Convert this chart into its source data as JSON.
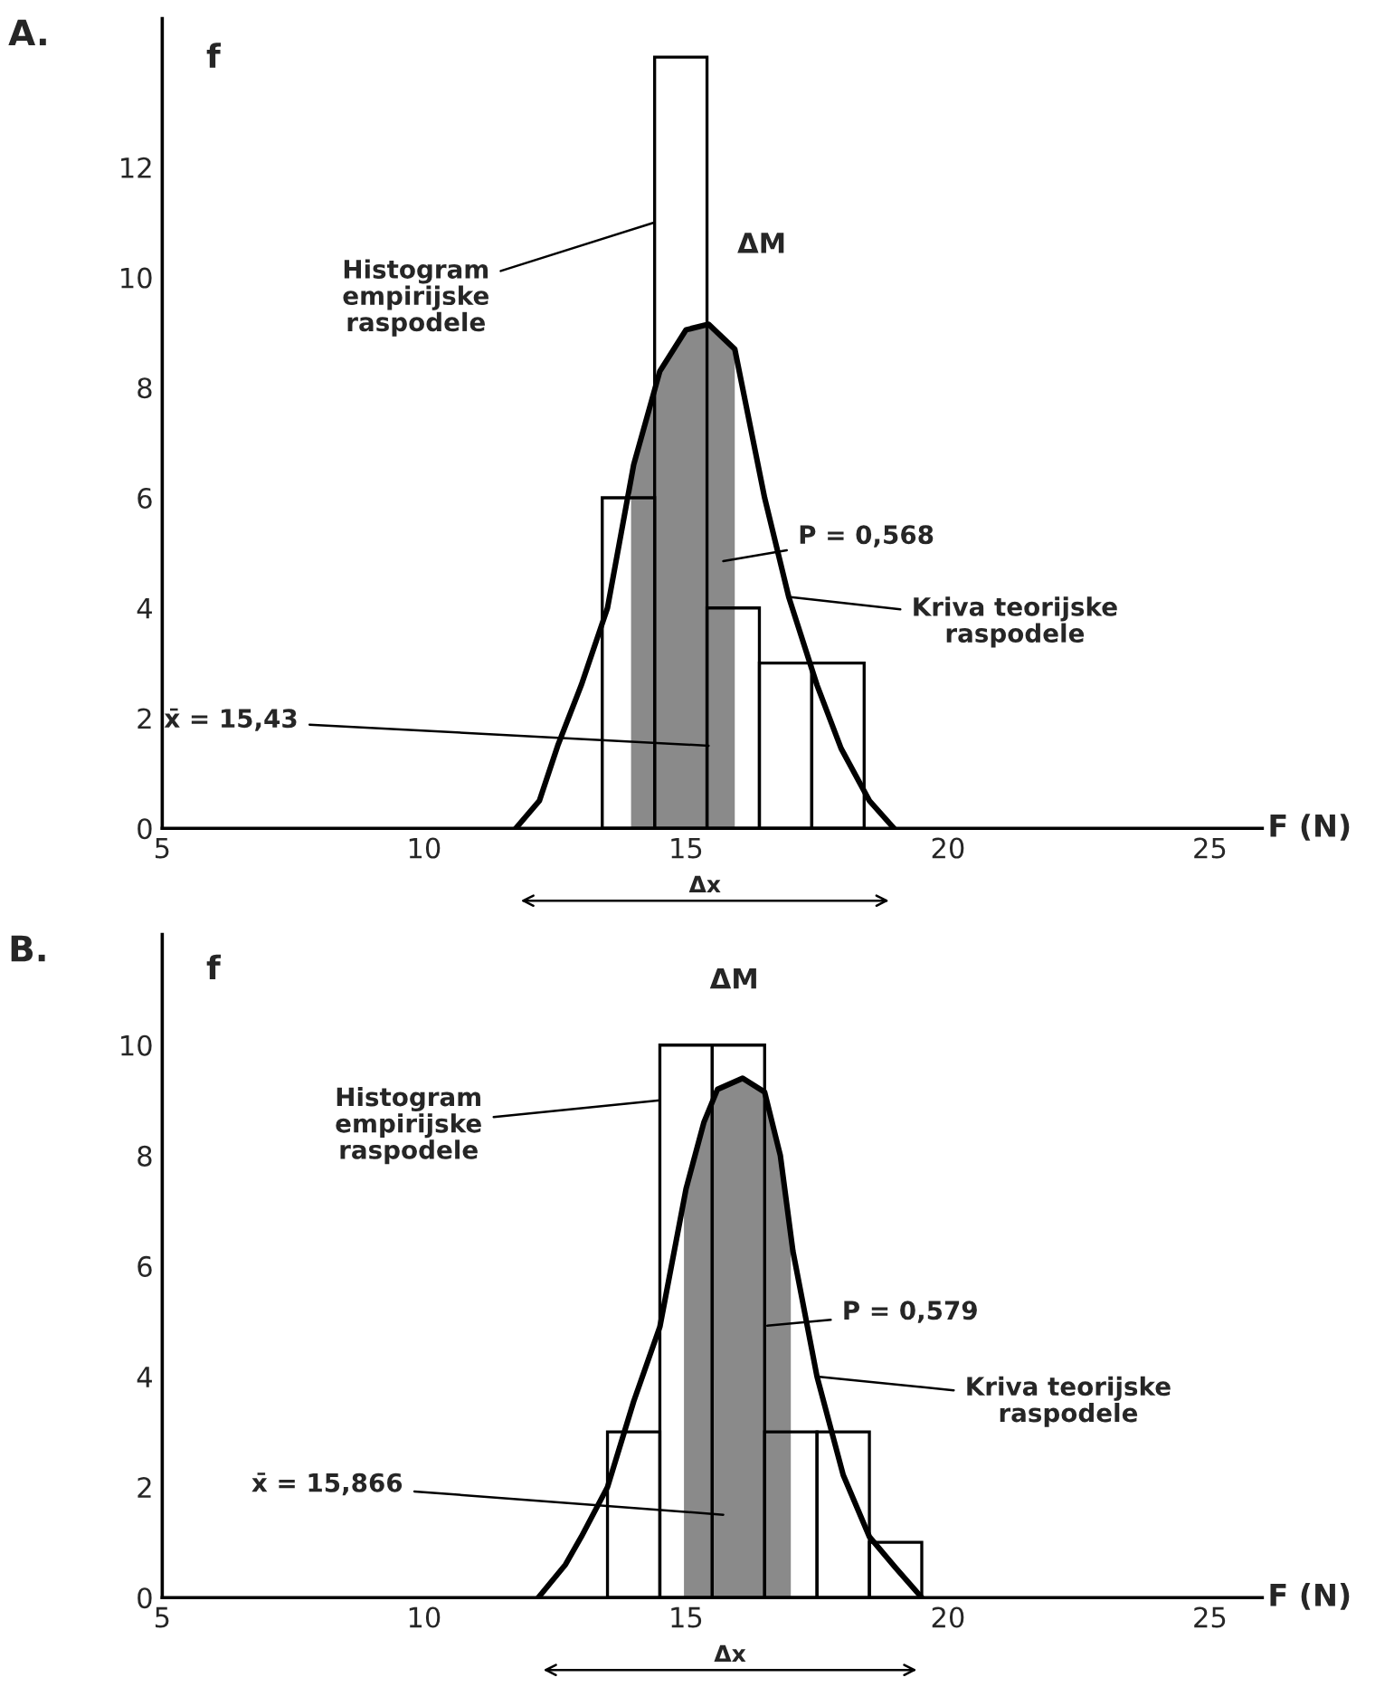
{
  "chart_data": [
    {
      "type": "histogram",
      "title": "A.",
      "xlabel": "F (N)",
      "ylabel": "f",
      "bins": [
        13.4,
        14.4,
        15.4,
        16.4,
        17.4,
        18.4
      ],
      "values": [
        6,
        14,
        4,
        3,
        3
      ],
      "color": "#000000",
      "series": [
        {
          "type": "area",
          "color": "#8a8a8a",
          "x": [
            13.95,
            14.0,
            14.5,
            15.0,
            15.43,
            15.93
          ],
          "values": [
            6.4,
            6.6,
            8.3,
            9.05,
            9.15,
            8.7
          ]
        },
        {
          "type": "line",
          "color": "#000000",
          "x": [
            11.75,
            12.2,
            12.55,
            13.0,
            13.5,
            14.0,
            14.5,
            15.0,
            15.43,
            15.93,
            16.5,
            16.96,
            17.5,
            17.96,
            18.5,
            18.97
          ],
          "values": [
            0,
            0.5,
            1.5,
            2.6,
            4.0,
            6.6,
            8.3,
            9.05,
            9.15,
            8.7,
            6.0,
            4.2,
            2.6,
            1.45,
            0.5,
            0
          ]
        }
      ],
      "xlim": [
        5,
        26
      ],
      "xticks": [
        5,
        10,
        15,
        20,
        25
      ],
      "ylim": [
        0,
        14.7
      ],
      "yticks": [
        0,
        2,
        4,
        6,
        8,
        10,
        12
      ],
      "annotations": [
        {
          "text": "Histogram\nempirijske\nraspodele",
          "x": 14.4,
          "y": 11
        },
        "ΔM",
        "P = 0,568",
        {
          "text": "Kriva teorijske\nraspodele",
          "x": 16.96,
          "y": 4.2
        },
        {
          "text": "x̄ = 15,43",
          "x": 15.43,
          "y": 1.5
        },
        "Δx"
      ]
    },
    {
      "type": "histogram",
      "title": "B.",
      "xlabel": "F (N)",
      "ylabel": "f",
      "bins": [
        13.5,
        14.5,
        15.5,
        16.5,
        17.5,
        18.5,
        19.5
      ],
      "values": [
        3,
        10,
        10,
        3,
        3,
        1
      ],
      "color": "#000000",
      "series": [
        {
          "type": "area",
          "color": "#8a8a8a",
          "x": [
            14.96,
            15.0,
            15.34,
            15.6,
            16.08,
            16.5,
            16.8,
            17.0
          ],
          "values": [
            7.3,
            7.4,
            8.6,
            9.2,
            9.4,
            9.15,
            8.0,
            6.4
          ]
        },
        {
          "type": "line",
          "color": "#000000",
          "x": [
            12.18,
            12.7,
            13.0,
            13.5,
            14.0,
            14.5,
            15.0,
            15.34,
            15.6,
            16.08,
            16.5,
            16.8,
            17.04,
            17.5,
            18.0,
            18.5,
            19.0,
            19.5
          ],
          "values": [
            0,
            0.6,
            1.1,
            2.0,
            3.55,
            4.9,
            7.4,
            8.6,
            9.2,
            9.4,
            9.15,
            8.0,
            6.27,
            4.0,
            2.22,
            1.1,
            0.54,
            0
          ]
        }
      ],
      "xlim": [
        5,
        26
      ],
      "xticks": [
        5,
        10,
        15,
        20,
        25
      ],
      "ylim": [
        0,
        12
      ],
      "yticks": [
        0,
        2,
        4,
        6,
        8,
        10
      ],
      "annotations": [
        {
          "text": "Histogram\nempirijske\nraspodele",
          "x": 14.5,
          "y": 9
        },
        "ΔM",
        "P = 0,579",
        {
          "text": "Kriva teorijske\nraspodele",
          "x": 17.5,
          "y": 4.0
        },
        "x̄ = 15,866",
        "Δx"
      ]
    }
  ]
}
